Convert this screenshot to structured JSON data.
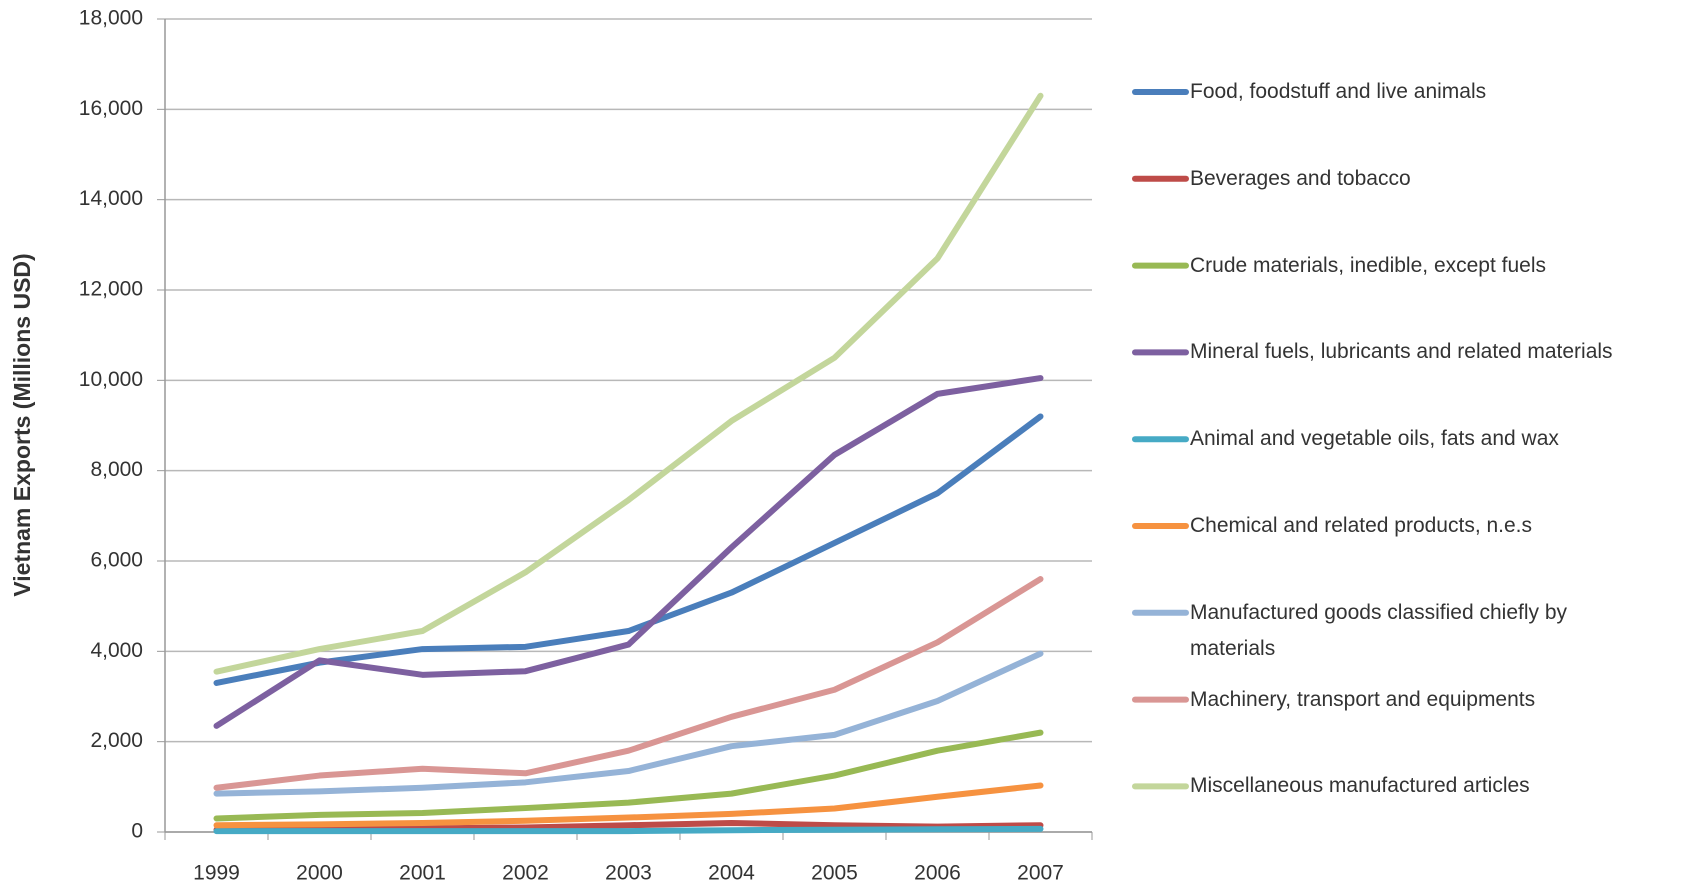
{
  "chart_data": {
    "type": "line",
    "y_label": "Vietnam Exports (Millions USD)",
    "categories": [
      "1999",
      "2000",
      "2001",
      "2002",
      "2003",
      "2004",
      "2005",
      "2006",
      "2007"
    ],
    "ylim": [
      0,
      18000
    ],
    "yticks": [
      0,
      {
        "value": 2000,
        "label": "2,000"
      },
      {
        "value": 4000,
        "label": "4,000"
      },
      {
        "value": 6000,
        "label": "6,000"
      },
      {
        "value": 8000,
        "label": "8,000"
      },
      {
        "value": 10000,
        "label": "10,000"
      },
      {
        "value": 12000,
        "label": "12,000"
      },
      {
        "value": 14000,
        "label": "14,000"
      },
      {
        "value": 16000,
        "label": "16,000"
      },
      {
        "value": 18000,
        "label": "18,000"
      }
    ],
    "grid": true,
    "legend": "right",
    "series": [
      {
        "name": "Food, foodstuff and live animals",
        "color": "#4a7ebb",
        "values": [
          3300,
          3750,
          4050,
          4100,
          4450,
          5300,
          6400,
          7500,
          9200
        ]
      },
      {
        "name": "Beverages and tobacco",
        "color": "#be4b48",
        "values": [
          50,
          60,
          80,
          100,
          150,
          200,
          150,
          120,
          150
        ]
      },
      {
        "name": "Crude materials, inedible, except fuels",
        "color": "#98b954",
        "values": [
          300,
          380,
          420,
          530,
          650,
          850,
          1250,
          1800,
          2200
        ]
      },
      {
        "name": "Mineral fuels, lubricants and related materials",
        "color": "#7d60a0",
        "values": [
          2350,
          3800,
          3480,
          3560,
          4150,
          6300,
          8350,
          9700,
          10050
        ]
      },
      {
        "name": "Animal and vegetable oils, fats and wax",
        "color": "#46aac5",
        "values": [
          20,
          20,
          20,
          20,
          20,
          40,
          50,
          60,
          70
        ]
      },
      {
        "name": "Chemical and related products, n.e.s",
        "color": "#f69240",
        "values": [
          150,
          170,
          200,
          250,
          320,
          400,
          520,
          780,
          1030
        ]
      },
      {
        "name": "Manufactured goods classified chiefly by materials",
        "color": "#95b3d7",
        "values": [
          850,
          900,
          980,
          1100,
          1350,
          1900,
          2150,
          2900,
          3950
        ]
      },
      {
        "name": "Machinery, transport and equipments",
        "color": "#d99694",
        "values": [
          980,
          1250,
          1400,
          1300,
          1800,
          2550,
          3150,
          4200,
          5600
        ]
      },
      {
        "name": "Miscellaneous manufactured articles",
        "color": "#c3d69b",
        "values": [
          3550,
          4050,
          4450,
          5750,
          7350,
          9100,
          10500,
          12700,
          16300
        ]
      }
    ]
  }
}
